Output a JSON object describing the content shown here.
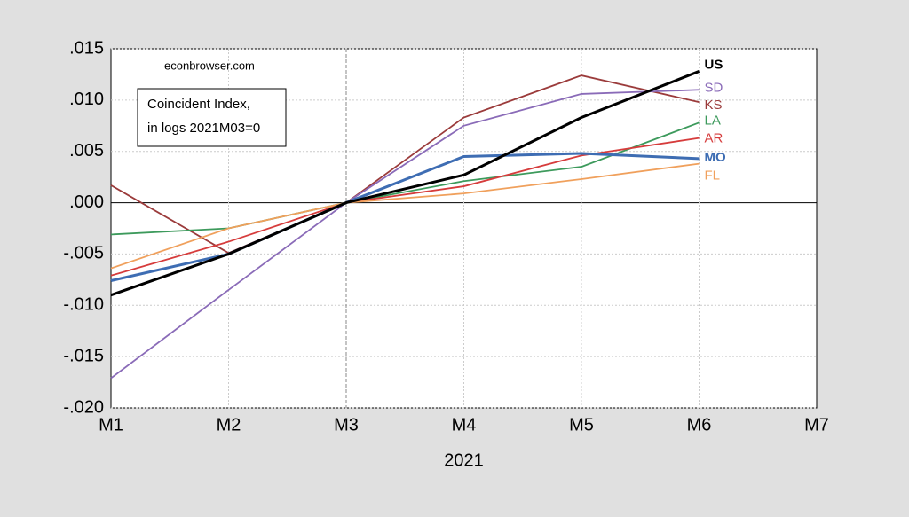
{
  "chart_data": {
    "type": "line",
    "annotations": [
      "econbrowser.com"
    ],
    "note_box": [
      "Coincident Index,",
      "in logs 2021M03=0"
    ],
    "xlabel": "2021",
    "categories": [
      "M1",
      "M2",
      "M3",
      "M4",
      "M5",
      "M6",
      "M7"
    ],
    "vline": "M3",
    "ylim": [
      -0.02,
      0.015
    ],
    "yticks": [
      {
        "value": -0.02,
        "label": "-.020"
      },
      {
        "value": -0.015,
        "label": "-.015"
      },
      {
        "value": -0.01,
        "label": "-.010"
      },
      {
        "value": -0.005,
        "label": "-.005"
      },
      {
        "value": 0,
        "label": ".000"
      },
      {
        "value": 0.005,
        "label": ".005"
      },
      {
        "value": 0.01,
        "label": ".010"
      },
      {
        "value": 0.015,
        "label": ".015"
      }
    ],
    "grid": true,
    "series": [
      {
        "name": "KS",
        "color": "#9b3b3b",
        "values": [
          0.0017,
          -0.0049,
          0,
          0.0083,
          0.0124,
          0.0098,
          null
        ]
      },
      {
        "name": "SD",
        "color": "#8a6bb8",
        "values": [
          -0.0171,
          -0.0085,
          0,
          0.0075,
          0.0106,
          0.011,
          null
        ]
      },
      {
        "name": "LA",
        "color": "#3d9a5c",
        "values": [
          -0.0031,
          -0.0025,
          0,
          0.0021,
          0.0035,
          0.0078,
          null
        ]
      },
      {
        "name": "AR",
        "color": "#d63c3c",
        "values": [
          -0.0071,
          -0.0038,
          0,
          0.0016,
          0.0046,
          0.0063,
          null
        ]
      },
      {
        "name": "FL",
        "color": "#f0a05c",
        "values": [
          -0.0064,
          -0.0025,
          0,
          0.0009,
          0.0023,
          0.0038,
          null
        ]
      },
      {
        "name": "MO",
        "color": "#3e6db3",
        "values": [
          -0.0076,
          -0.005,
          0,
          0.0045,
          0.0048,
          0.0043,
          null
        ]
      },
      {
        "name": "US",
        "color": "#000000",
        "values": [
          -0.009,
          -0.005,
          0,
          0.0027,
          0.0083,
          0.0128,
          null
        ]
      }
    ]
  }
}
